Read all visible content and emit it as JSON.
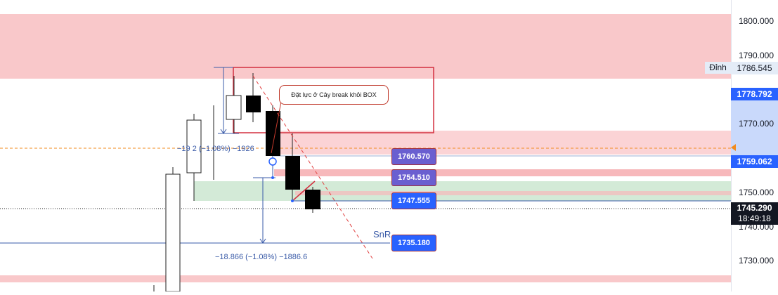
{
  "axis": {
    "ticks": [
      "1800.000",
      "1790.000",
      "1770.000",
      "1750.000",
      "1740.000",
      "1730.000"
    ],
    "dinh_label": "Đỉnh",
    "dinh_price": "1786.545",
    "price_top": "1778.792",
    "price_mid": "1759.062",
    "current_price": "1745.290",
    "countdown": "18:49:18"
  },
  "labels": {
    "l1": "1760.570",
    "l2": "1754.510",
    "l3": "1747.555",
    "l4": "1735.180"
  },
  "annotations": {
    "callout": "Đặt lực ở Cây break khỏi BOX",
    "snr": "SnR",
    "measure_top": "−19    2 (−1.08%) −1926",
    "measure_bottom": "−18.866 (−1.08%) −1886.6"
  },
  "colors": {
    "resistance_zone": "#f9c8ca",
    "support_zone": "#d3ead7",
    "box_border": "#d32f3f",
    "label_blue": "#2962ff",
    "label_purple": "#6a5fd0",
    "axis_tag_blue": "#2962ff",
    "dashed_line": "#e04040",
    "orange_line": "#f28b1e"
  }
}
